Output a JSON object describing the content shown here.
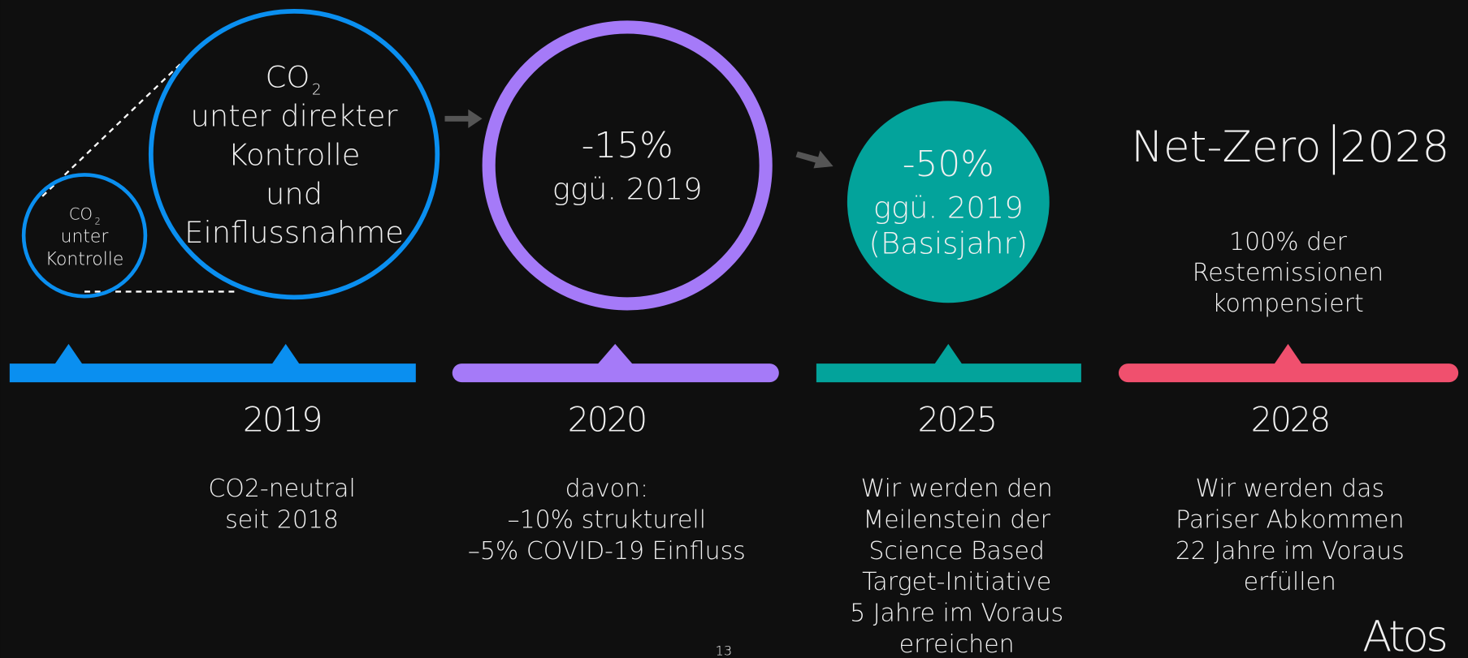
{
  "circles": {
    "small": {
      "co": "CO",
      "sub": "2",
      "lines": [
        "unter",
        "Kontrolle"
      ]
    },
    "large": {
      "co": "CO",
      "sub": "2",
      "lines": [
        "unter direkter",
        "Kontrolle",
        "und",
        "Einflussnahme"
      ]
    },
    "m2020": {
      "value": "-15%",
      "lines": [
        "ggü. 2019"
      ]
    },
    "m2025": {
      "value": "-50%",
      "lines": [
        "ggü. 2019",
        "(Basisjahr)"
      ]
    }
  },
  "netzero": {
    "label": "Net-Zero",
    "year": "2028",
    "lines": [
      "100% der",
      "Restemissionen",
      "kompensiert"
    ]
  },
  "timeline": [
    {
      "year": "2019",
      "lines": [
        "CO2-neutral",
        "seit 2018"
      ]
    },
    {
      "year": "2020",
      "lines": [
        "davon:",
        "–10% strukturell",
        "–5% COVID-19 Einfluss"
      ]
    },
    {
      "year": "2025",
      "lines": [
        "Wir werden den",
        "Meilenstein  der",
        "Science Based",
        "Target-Initiative",
        "5 Jahre im Voraus",
        "erreichen"
      ]
    },
    {
      "year": "2028",
      "lines": [
        "Wir werden das",
        "Pariser Abkommen",
        "22 Jahre im Voraus",
        "erfüllen"
      ]
    }
  ],
  "page_number": "13",
  "logo": "Atos"
}
